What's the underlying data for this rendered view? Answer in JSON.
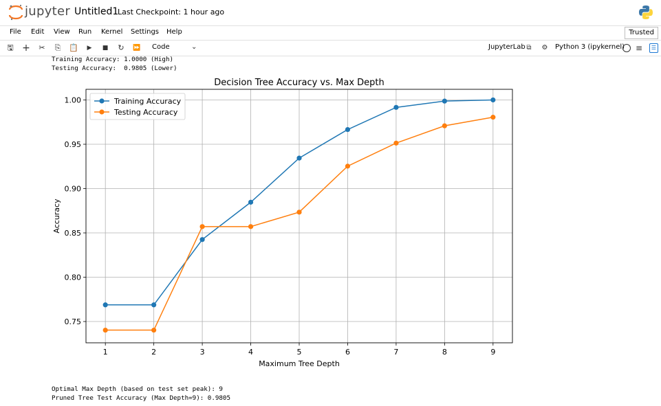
{
  "header": {
    "logo_text": "jupyter",
    "notebook_title": "Untitled1",
    "checkpoint": "Last Checkpoint: 1 hour ago"
  },
  "menu": {
    "items": [
      "File",
      "Edit",
      "View",
      "Run",
      "Kernel",
      "Settings",
      "Help"
    ],
    "trusted": "Trusted"
  },
  "toolbar": {
    "cell_type": "Code",
    "jupyterlab": "JupyterLab",
    "kernel": "Python 3 (ipykernel)"
  },
  "output": {
    "top_lines": [
      "Training Accuracy: 1.0000 (High)",
      "Testing Accuracy:  0.9805 (Lower)"
    ],
    "bottom_lines": [
      "Optimal Max Depth (based on test set peak): 9",
      "Pruned Tree Test Accuracy (Max Depth=9): 0.9805"
    ]
  },
  "chart_data": {
    "type": "line",
    "title": "Decision Tree Accuracy vs. Max Depth",
    "xlabel": "Maximum Tree Depth",
    "ylabel": "Accuracy",
    "x": [
      1,
      2,
      3,
      4,
      5,
      6,
      7,
      8,
      9
    ],
    "xticks": [
      "1",
      "2",
      "3",
      "4",
      "5",
      "6",
      "7",
      "8",
      "9"
    ],
    "yticks": [
      "0.75",
      "0.80",
      "0.85",
      "0.90",
      "0.95",
      "1.00"
    ],
    "ylim": [
      0.726,
      1.012
    ],
    "xlim": [
      0.6,
      9.4
    ],
    "grid": true,
    "legend_position": "upper left",
    "series": [
      {
        "name": "Training Accuracy",
        "color": "#1f77b4",
        "values": [
          0.7688,
          0.7688,
          0.8425,
          0.8846,
          0.9344,
          0.9666,
          0.9916,
          0.9987,
          1.0
        ]
      },
      {
        "name": "Testing Accuracy",
        "color": "#ff7f0e",
        "values": [
          0.7403,
          0.7403,
          0.8571,
          0.8571,
          0.8734,
          0.9253,
          0.9513,
          0.9708,
          0.9805
        ]
      }
    ]
  }
}
